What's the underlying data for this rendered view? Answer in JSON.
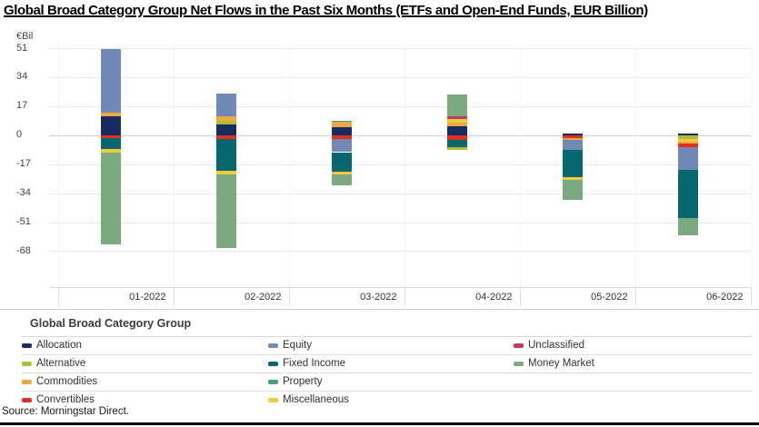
{
  "title": "Global Broad Category Group Net Flows in the Past Six Months (ETFs and Open-End Funds, EUR Billion)",
  "source": "Source: Morningstar Direct.",
  "legend": {
    "header": "Global Broad Category Group",
    "columns": [
      [
        "Allocation",
        "Alternative",
        "Commodities",
        "Convertibles"
      ],
      [
        "Equity",
        "Fixed Income",
        "Property",
        "Miscellaneous"
      ],
      [
        "Unclassified",
        "Money Market"
      ]
    ]
  },
  "palette": {
    "Allocation": "#1a2a63",
    "Alternative": "#b3bd33",
    "Commodities": "#eaa83e",
    "Convertibles": "#e0301e",
    "Equity": "#7189b7",
    "Fixed Income": "#06676f",
    "Property": "#42a07d",
    "Miscellaneous": "#f3ca3a",
    "Unclassified": "#c23a66",
    "Money Market": "#7aaa7d"
  },
  "chart_data": {
    "type": "bar",
    "stacked": true,
    "title": "Global Broad Category Group Net Flows in the Past Six Months (ETFs and Open-End Funds, EUR Billion)",
    "unit": "EUR Billion",
    "ylabel": "€Bil",
    "ylim": [
      -68,
      51
    ],
    "yticks": [
      51,
      34,
      17,
      0,
      -17,
      -34,
      -51,
      -68
    ],
    "grid": true,
    "legend_position": "bottom",
    "categories": [
      "01-2022",
      "02-2022",
      "03-2022",
      "04-2022",
      "05-2022",
      "06-2022"
    ],
    "bars": [
      {
        "month": "01-2022",
        "positive": [
          {
            "name": "Allocation",
            "value": 11.3
          },
          {
            "name": "Commodities",
            "value": 2.4
          },
          {
            "name": "Equity",
            "value": 36.9
          }
        ],
        "negative": [
          {
            "name": "Convertibles",
            "value": -1.6
          },
          {
            "name": "Fixed Income",
            "value": -6.1
          },
          {
            "name": "Miscellaneous",
            "value": -2.1
          },
          {
            "name": "Money Market",
            "value": -53.8
          }
        ]
      },
      {
        "month": "02-2022",
        "positive": [
          {
            "name": "Allocation",
            "value": 6.4
          },
          {
            "name": "Alternative",
            "value": 2.1
          },
          {
            "name": "Commodities",
            "value": 2.7
          },
          {
            "name": "Equity",
            "value": 13.3
          }
        ],
        "negative": [
          {
            "name": "Convertibles",
            "value": -2.1
          },
          {
            "name": "Fixed Income",
            "value": -18.7
          },
          {
            "name": "Miscellaneous",
            "value": -2.0
          },
          {
            "name": "Money Market",
            "value": -43.0
          }
        ]
      },
      {
        "month": "03-2022",
        "positive": [
          {
            "name": "Allocation",
            "value": 5.0
          },
          {
            "name": "Commodities",
            "value": 2.9
          },
          {
            "name": "Property",
            "value": 0.6
          }
        ],
        "negative": [
          {
            "name": "Convertibles",
            "value": -2.1
          },
          {
            "name": "Equity",
            "value": -7.6
          },
          {
            "name": "Fixed Income",
            "value": -11.2
          },
          {
            "name": "Miscellaneous",
            "value": -1.8
          },
          {
            "name": "Money Market",
            "value": -6.6
          }
        ]
      },
      {
        "month": "04-2022",
        "positive": [
          {
            "name": "Allocation",
            "value": 5.3
          },
          {
            "name": "Commodities",
            "value": 2.5
          },
          {
            "name": "Miscellaneous",
            "value": 2.1
          },
          {
            "name": "Unclassified",
            "value": 1.3
          },
          {
            "name": "Money Market",
            "value": 12.8
          }
        ],
        "negative": [
          {
            "name": "Convertibles",
            "value": -2.3
          },
          {
            "name": "Fixed Income",
            "value": -4.6
          },
          {
            "name": "Alternative",
            "value": -1.6
          }
        ]
      },
      {
        "month": "05-2022",
        "positive": [
          {
            "name": "Allocation",
            "value": 1.2
          }
        ],
        "negative": [
          {
            "name": "Convertibles",
            "value": -1.3
          },
          {
            "name": "Commodities",
            "value": -1.4
          },
          {
            "name": "Equity",
            "value": -5.6
          },
          {
            "name": "Fixed Income",
            "value": -16.0
          },
          {
            "name": "Miscellaneous",
            "value": -1.5
          },
          {
            "name": "Money Market",
            "value": -11.8
          }
        ]
      },
      {
        "month": "06-2022",
        "positive": [
          {
            "name": "Allocation",
            "value": 1.0
          }
        ],
        "negative": [
          {
            "name": "Alternative",
            "value": -2.1
          },
          {
            "name": "Miscellaneous",
            "value": -1.4
          },
          {
            "name": "Commodities",
            "value": -1.4
          },
          {
            "name": "Convertibles",
            "value": -2.1
          },
          {
            "name": "Equity",
            "value": -13.2
          },
          {
            "name": "Fixed Income",
            "value": -28.0
          },
          {
            "name": "Money Market",
            "value": -10.4
          }
        ]
      }
    ]
  }
}
